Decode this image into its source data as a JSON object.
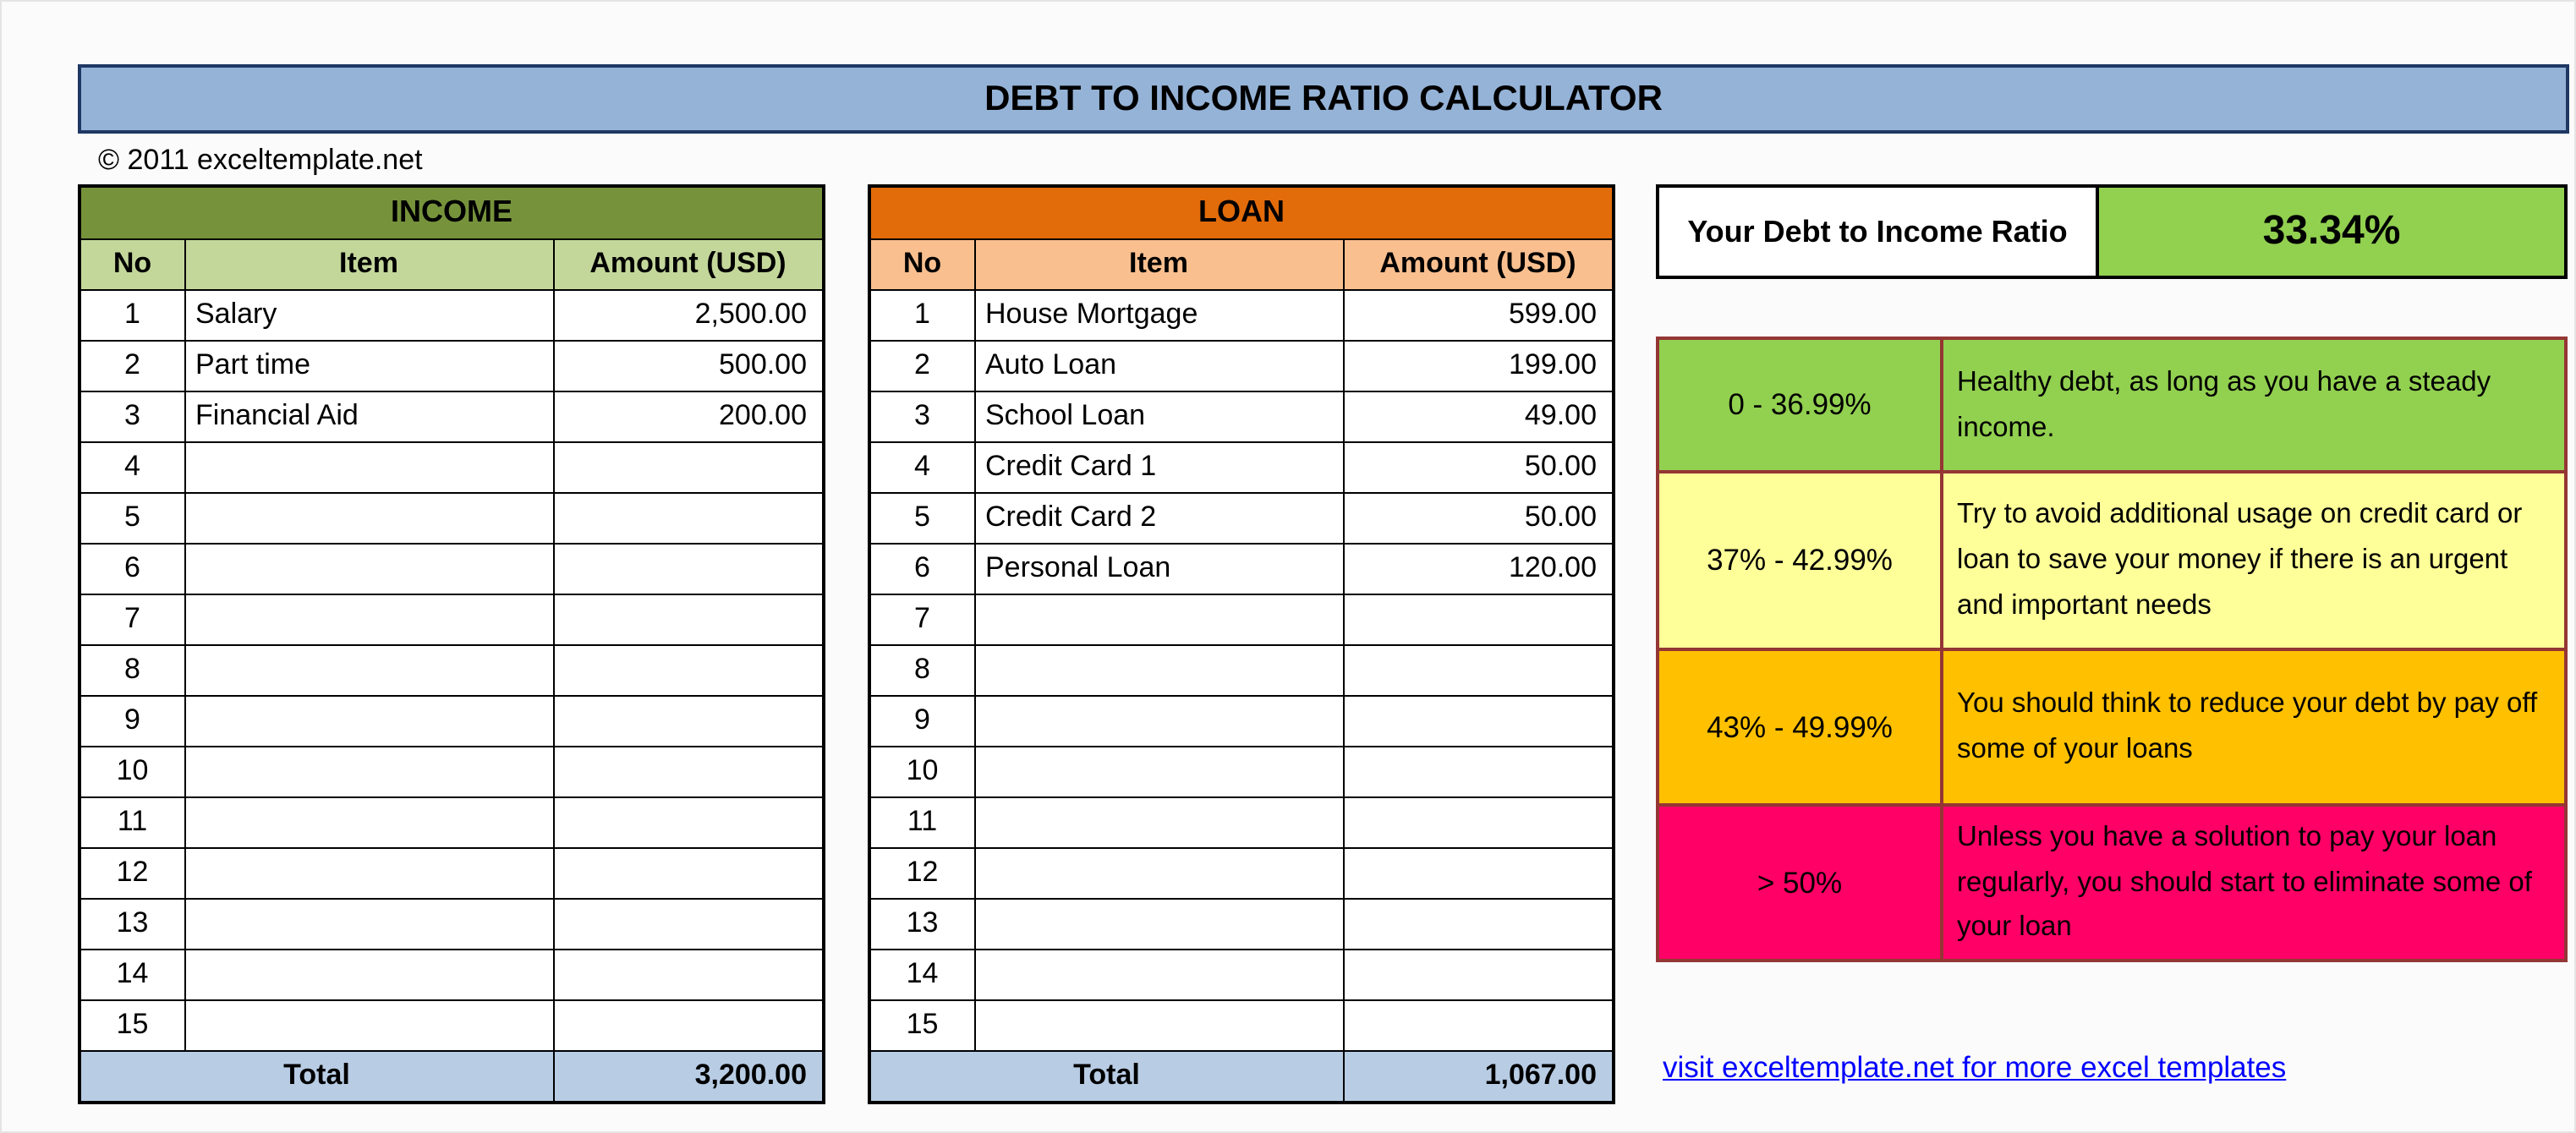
{
  "title": "DEBT TO INCOME RATIO CALCULATOR",
  "copyright": "© 2011 exceltemplate.net",
  "income_table": {
    "title": "INCOME",
    "columns": [
      "No",
      "Item",
      "Amount (USD)"
    ],
    "rows": [
      {
        "no": "1",
        "item": "Salary",
        "amount": "2,500.00"
      },
      {
        "no": "2",
        "item": "Part time",
        "amount": "500.00"
      },
      {
        "no": "3",
        "item": "Financial Aid",
        "amount": "200.00"
      },
      {
        "no": "4",
        "item": "",
        "amount": ""
      },
      {
        "no": "5",
        "item": "",
        "amount": ""
      },
      {
        "no": "6",
        "item": "",
        "amount": ""
      },
      {
        "no": "7",
        "item": "",
        "amount": ""
      },
      {
        "no": "8",
        "item": "",
        "amount": ""
      },
      {
        "no": "9",
        "item": "",
        "amount": ""
      },
      {
        "no": "10",
        "item": "",
        "amount": ""
      },
      {
        "no": "11",
        "item": "",
        "amount": ""
      },
      {
        "no": "12",
        "item": "",
        "amount": ""
      },
      {
        "no": "13",
        "item": "",
        "amount": ""
      },
      {
        "no": "14",
        "item": "",
        "amount": ""
      },
      {
        "no": "15",
        "item": "",
        "amount": ""
      }
    ],
    "total_label": "Total",
    "total": "3,200.00"
  },
  "loan_table": {
    "title": "LOAN",
    "columns": [
      "No",
      "Item",
      "Amount (USD)"
    ],
    "rows": [
      {
        "no": "1",
        "item": "House Mortgage",
        "amount": "599.00"
      },
      {
        "no": "2",
        "item": "Auto Loan",
        "amount": "199.00"
      },
      {
        "no": "3",
        "item": "School Loan",
        "amount": "49.00"
      },
      {
        "no": "4",
        "item": "Credit Card 1",
        "amount": "50.00"
      },
      {
        "no": "5",
        "item": "Credit Card 2",
        "amount": "50.00"
      },
      {
        "no": "6",
        "item": "Personal Loan",
        "amount": "120.00"
      },
      {
        "no": "7",
        "item": "",
        "amount": ""
      },
      {
        "no": "8",
        "item": "",
        "amount": ""
      },
      {
        "no": "9",
        "item": "",
        "amount": ""
      },
      {
        "no": "10",
        "item": "",
        "amount": ""
      },
      {
        "no": "11",
        "item": "",
        "amount": ""
      },
      {
        "no": "12",
        "item": "",
        "amount": ""
      },
      {
        "no": "13",
        "item": "",
        "amount": ""
      },
      {
        "no": "14",
        "item": "",
        "amount": ""
      },
      {
        "no": "15",
        "item": "",
        "amount": ""
      }
    ],
    "total_label": "Total",
    "total": "1,067.00"
  },
  "ratio": {
    "label": "Your Debt to Income Ratio",
    "value": "33.34%"
  },
  "legend": [
    {
      "range": "0 - 36.99%",
      "description": "Healthy debt, as long as you have a steady income.",
      "color": "#92d050"
    },
    {
      "range": "37% - 42.99%",
      "description": "Try to avoid additional usage on credit card or loan to save your money if there is an urgent and important needs",
      "color": "#ffff99"
    },
    {
      "range": "43% - 49.99%",
      "description": "You should think to reduce your debt by pay off some of your loans",
      "color": "#ffc000"
    },
    {
      "range": "> 50%",
      "description": "Unless you have a solution to pay your loan regularly, you should start to eliminate some of your loan",
      "color": "#ff0066"
    }
  ],
  "footer_link": "visit exceltemplate.net for more excel templates",
  "colors": {
    "title_bar": "#95b3d7",
    "income_header": "#76933c",
    "income_subheader": "#c4d79b",
    "loan_header": "#e26b0a",
    "loan_subheader": "#fabf8f",
    "total_row": "#b8cce4",
    "ratio_value_bg": "#92d050",
    "legend_border": "#943634",
    "link": "#0000ff"
  }
}
